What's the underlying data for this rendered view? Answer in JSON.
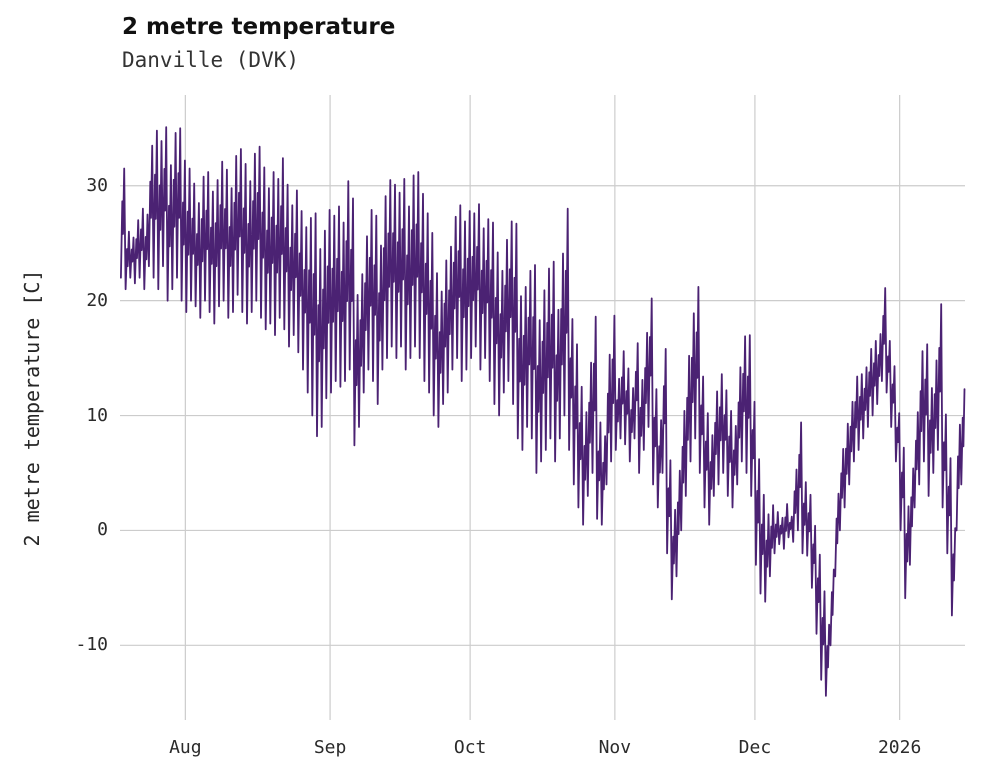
{
  "header": {
    "title": "2 metre temperature",
    "subtitle": "Danville (DVK)"
  },
  "chart_data": {
    "type": "line",
    "title": "2 metre temperature",
    "subtitle": "Danville (DVK)",
    "xlabel": "",
    "ylabel": "2 metre temperature [C]",
    "grid": true,
    "legend": "none",
    "line_color": "#4b2273",
    "grid_color": "#cccccc",
    "ylim": [
      -16.5,
      37.9
    ],
    "y_ticks": [
      -10,
      0,
      10,
      20,
      30
    ],
    "x_domain_days": [
      0,
      181
    ],
    "x_ticks": [
      {
        "label": "Aug",
        "day": 14
      },
      {
        "label": "Sep",
        "day": 45
      },
      {
        "label": "Oct",
        "day": 75
      },
      {
        "label": "Nov",
        "day": 106
      },
      {
        "label": "Dec",
        "day": 136
      },
      {
        "label": "2026",
        "day": 167
      }
    ],
    "series_name": "2 metre temperature",
    "units": "C",
    "daily_min_max_by_day_index": [
      [
        22,
        31.5
      ],
      [
        21,
        26
      ],
      [
        22,
        25.5
      ],
      [
        21.5,
        27
      ],
      [
        22,
        28
      ],
      [
        21,
        27.5
      ],
      [
        23,
        33.5
      ],
      [
        22,
        34.8
      ],
      [
        21,
        33.9
      ],
      [
        23,
        35.1
      ],
      [
        20,
        31.8
      ],
      [
        21,
        34.6
      ],
      [
        22,
        35
      ],
      [
        20,
        32.2
      ],
      [
        19,
        31.5
      ],
      [
        20,
        30.2
      ],
      [
        19.5,
        28.5
      ],
      [
        18.5,
        30.8
      ],
      [
        20,
        31.2
      ],
      [
        19,
        29.5
      ],
      [
        18,
        30.5
      ],
      [
        19.5,
        32.1
      ],
      [
        20,
        31.4
      ],
      [
        18.5,
        29.8
      ],
      [
        19,
        32.6
      ],
      [
        20.5,
        33.2
      ],
      [
        19,
        31.9
      ],
      [
        18,
        30.4
      ],
      [
        19,
        32.8
      ],
      [
        20,
        33.4
      ],
      [
        18.5,
        31.6
      ],
      [
        17.5,
        29.8
      ],
      [
        18,
        31.2
      ],
      [
        17,
        30.6
      ],
      [
        18.5,
        32.4
      ],
      [
        17.5,
        30.1
      ],
      [
        16,
        28.3
      ],
      [
        17,
        29.6
      ],
      [
        15.5,
        27.8
      ],
      [
        14,
        26.4
      ],
      [
        12,
        27.2
      ],
      [
        10,
        27.6
      ],
      [
        8.2,
        24.5
      ],
      [
        9,
        26.1
      ],
      [
        11.5,
        27.9
      ],
      [
        12,
        27.4
      ],
      [
        13,
        28.2
      ],
      [
        12.5,
        26.8
      ],
      [
        13,
        30.4
      ],
      [
        14,
        28.9
      ],
      [
        7.4,
        20.5
      ],
      [
        9,
        22.3
      ],
      [
        12,
        25.6
      ],
      [
        14,
        27.9
      ],
      [
        13,
        27.4
      ],
      [
        11,
        24.8
      ],
      [
        14,
        29.1
      ],
      [
        15,
        30.5
      ],
      [
        16,
        30.1
      ],
      [
        15,
        29.4
      ],
      [
        16,
        30.6
      ],
      [
        14,
        28.2
      ],
      [
        15,
        30.9
      ],
      [
        16,
        31.2
      ],
      [
        15,
        29.3
      ],
      [
        13,
        27.6
      ],
      [
        12,
        25.9
      ],
      [
        10,
        22.4
      ],
      [
        9,
        20.8
      ],
      [
        11,
        23.5
      ],
      [
        12,
        24.7
      ],
      [
        14,
        27.3
      ],
      [
        15,
        28.3
      ],
      [
        13,
        26.9
      ],
      [
        14,
        27.8
      ],
      [
        15,
        27.6
      ],
      [
        16,
        28.4
      ],
      [
        14,
        26.3
      ],
      [
        15,
        27.1
      ],
      [
        13,
        26.8
      ],
      [
        11,
        24.2
      ],
      [
        10,
        22.6
      ],
      [
        12,
        25.3
      ],
      [
        13,
        26.9
      ],
      [
        11,
        26.7
      ],
      [
        8,
        20.4
      ],
      [
        7,
        21.2
      ],
      [
        9,
        22.6
      ],
      [
        8,
        23.1
      ],
      [
        5,
        18.3
      ],
      [
        6,
        20.9
      ],
      [
        7,
        22.8
      ],
      [
        8,
        23.4
      ],
      [
        6,
        19.2
      ],
      [
        8,
        24.1
      ],
      [
        10,
        28
      ],
      [
        7,
        18.4
      ],
      [
        4,
        16.2
      ],
      [
        2,
        12.5
      ],
      [
        0.5,
        10.3
      ],
      [
        3,
        14.6
      ],
      [
        5,
        18.6
      ],
      [
        1,
        9.4
      ],
      [
        0.5,
        8.2
      ],
      [
        4,
        15.3
      ],
      [
        6,
        18.7
      ],
      [
        7,
        13.2
      ],
      [
        8,
        15.6
      ],
      [
        7.5,
        14.1
      ],
      [
        6,
        12.4
      ],
      [
        8,
        16.3
      ],
      [
        5,
        13.1
      ],
      [
        7,
        17.2
      ],
      [
        9,
        20.2
      ],
      [
        4,
        12.3
      ],
      [
        2,
        9.6
      ],
      [
        5,
        15.8
      ],
      [
        -2,
        6.1
      ],
      [
        -6,
        1.8
      ],
      [
        -4,
        5.2
      ],
      [
        0,
        10.4
      ],
      [
        3,
        15.2
      ],
      [
        6,
        18.9
      ],
      [
        8,
        21.2
      ],
      [
        5,
        13.4
      ],
      [
        2,
        10.2
      ],
      [
        0.5,
        8.3
      ],
      [
        3,
        12.1
      ],
      [
        4,
        13.6
      ],
      [
        5,
        12.2
      ],
      [
        3,
        10.4
      ],
      [
        2,
        9.1
      ],
      [
        4,
        14.2
      ],
      [
        6,
        16.9
      ],
      [
        5,
        17
      ],
      [
        3,
        11.2
      ],
      [
        -3,
        6.2
      ],
      [
        -5.5,
        3.1
      ],
      [
        -6.2,
        1.4
      ],
      [
        -4,
        2.2
      ],
      [
        -2,
        1.6
      ],
      [
        -1.2,
        1.1
      ],
      [
        -1.6,
        2.3
      ],
      [
        -0.6,
        1.2
      ],
      [
        -1,
        5.3
      ],
      [
        0,
        9.4
      ],
      [
        -2,
        4.2
      ],
      [
        -2.2,
        3.1
      ],
      [
        -5,
        0.4
      ],
      [
        -9,
        -2.1
      ],
      [
        -13,
        -5.3
      ],
      [
        -14.4,
        -8.2
      ],
      [
        -10,
        -3.4
      ],
      [
        -4,
        3.2
      ],
      [
        0,
        7.1
      ],
      [
        2,
        9.3
      ],
      [
        4,
        11.2
      ],
      [
        6,
        13.4
      ],
      [
        7,
        13.6
      ],
      [
        8,
        14.2
      ],
      [
        9,
        15.8
      ],
      [
        10,
        16.5
      ],
      [
        11,
        17.1
      ],
      [
        13,
        21.1
      ],
      [
        12,
        16.5
      ],
      [
        9,
        14.3
      ],
      [
        6,
        10.2
      ],
      [
        0,
        7.2
      ],
      [
        -5.9,
        2.1
      ],
      [
        -3,
        5.4
      ],
      [
        2,
        10.3
      ],
      [
        4,
        15.6
      ],
      [
        6,
        16.2
      ],
      [
        3,
        12.4
      ],
      [
        5,
        14.8
      ],
      [
        7,
        19.7
      ],
      [
        2,
        10.1
      ],
      [
        -2,
        6.3
      ],
      [
        -7.4,
        0.2
      ],
      [
        0,
        9.2
      ],
      [
        4,
        12.3
      ]
    ]
  }
}
